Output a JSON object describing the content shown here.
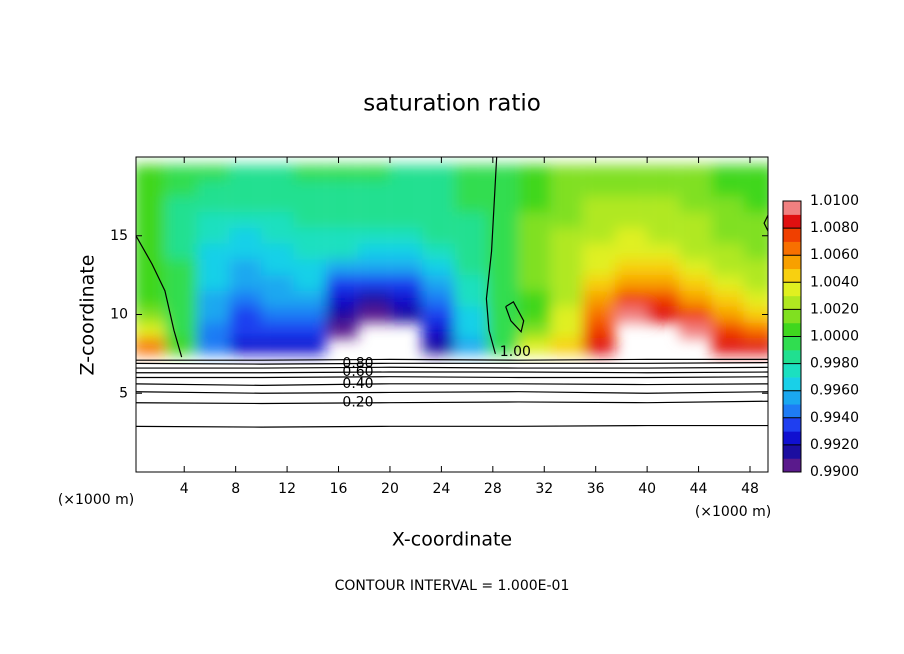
{
  "chart_data": {
    "type": "contour",
    "title": "saturation ratio",
    "xlabel": "X-coordinate",
    "ylabel": "Z-coordinate",
    "x_unit": "(×1000 m)",
    "footer": "CONTOUR INTERVAL = 1.000E-01",
    "xlim": [
      0.25,
      49.4
    ],
    "ylim": [
      0,
      20
    ],
    "xticks": [
      4,
      8,
      12,
      16,
      20,
      24,
      28,
      32,
      36,
      40,
      44,
      48
    ],
    "yticks": [
      5,
      10,
      15
    ],
    "colorbar": {
      "lim": [
        0.99,
        1.01
      ],
      "step": 0.001,
      "colors": [
        "#5a1a8c",
        "#1c0ea0",
        "#1010d0",
        "#1f3ff0",
        "#1e7cf5",
        "#1aa8f0",
        "#19d0e8",
        "#1be0c0",
        "#20e090",
        "#30dd50",
        "#3fd71e",
        "#80e020",
        "#b0e820",
        "#e0f020",
        "#f8d010",
        "#f8a000",
        "#f87000",
        "#f04000",
        "#e01010",
        "#f08080"
      ],
      "ticks": [
        {
          "value": 0.99,
          "label": "0.9900"
        },
        {
          "value": 0.992,
          "label": "0.9920"
        },
        {
          "value": 0.994,
          "label": "0.9940"
        },
        {
          "value": 0.996,
          "label": "0.9960"
        },
        {
          "value": 0.998,
          "label": "0.9980"
        },
        {
          "value": 1.0,
          "label": "1.0000"
        },
        {
          "value": 1.002,
          "label": "1.0020"
        },
        {
          "value": 1.004,
          "label": "1.0040"
        },
        {
          "value": 1.006,
          "label": "1.0060"
        },
        {
          "value": 1.008,
          "label": "1.0080"
        },
        {
          "value": 1.01,
          "label": "1.0100"
        }
      ]
    },
    "field": {
      "x": [
        1.25,
        3.75,
        6.25,
        8.75,
        11.25,
        13.75,
        16.25,
        18.75,
        21.25,
        23.75,
        26.25,
        28.75,
        31.25,
        33.75,
        36.25,
        38.75,
        41.25,
        43.75,
        46.25,
        48.75
      ],
      "z": [
        19,
        18,
        17,
        16,
        15,
        14,
        13,
        12,
        11,
        10,
        9,
        8
      ],
      "values": [
        [
          1.0003,
          0.9992,
          0.999,
          0.9988,
          0.9988,
          0.999,
          0.999,
          0.999,
          0.9988,
          0.9988,
          0.999,
          0.9996,
          1.0006,
          1.001,
          1.0012,
          1.0014,
          1.0012,
          1.001,
          1.0006,
          1.0004
        ],
        [
          1.0003,
          0.9991,
          0.9988,
          0.9985,
          0.9985,
          0.9988,
          0.9988,
          0.9988,
          0.9986,
          0.9987,
          0.999,
          0.9996,
          1.0008,
          1.0012,
          1.0016,
          1.0018,
          1.0016,
          1.0012,
          1.0008,
          1.0006
        ],
        [
          1.0004,
          0.9989,
          0.9984,
          0.998,
          0.9982,
          0.9986,
          0.9986,
          0.9986,
          0.9984,
          0.9986,
          0.999,
          0.9997,
          1.0009,
          1.0015,
          1.002,
          1.0022,
          1.002,
          1.0016,
          1.001,
          1.0008
        ],
        [
          1.0004,
          0.9988,
          0.9978,
          0.9972,
          0.9976,
          0.9982,
          0.9984,
          0.9982,
          0.998,
          0.9984,
          0.9989,
          0.9997,
          1.001,
          1.0018,
          1.0024,
          1.0026,
          1.0024,
          1.002,
          1.0014,
          1.001
        ],
        [
          1.0002,
          0.9986,
          0.9972,
          0.9966,
          0.997,
          0.9978,
          0.9978,
          0.9976,
          0.9974,
          0.998,
          0.9988,
          0.9997,
          1.0011,
          1.002,
          1.0028,
          1.003,
          1.0028,
          1.0024,
          1.0018,
          1.0014
        ],
        [
          1.0004,
          0.9988,
          0.9968,
          0.996,
          0.9966,
          0.9974,
          0.997,
          0.9966,
          0.9966,
          0.9974,
          0.9986,
          0.9998,
          1.0012,
          1.0022,
          1.0032,
          1.0036,
          1.0034,
          1.0028,
          1.0022,
          1.0018
        ],
        [
          1.0005,
          0.999,
          0.9964,
          0.9956,
          0.9962,
          0.9968,
          0.9954,
          0.995,
          0.9952,
          0.9964,
          0.9982,
          0.9998,
          1.0012,
          1.0024,
          1.0038,
          1.0044,
          1.0042,
          1.0034,
          1.0026,
          1.0022
        ],
        [
          1.0006,
          0.9992,
          0.9962,
          0.995,
          0.9958,
          0.996,
          0.9936,
          0.9932,
          0.9936,
          0.9954,
          0.9978,
          0.9997,
          1.001,
          1.0026,
          1.0046,
          1.0056,
          1.0054,
          1.0044,
          1.0032,
          1.0028
        ],
        [
          1.0008,
          0.9994,
          0.9958,
          0.9946,
          0.995,
          0.995,
          0.9922,
          0.9918,
          0.9922,
          0.9944,
          0.9972,
          0.9994,
          1.0008,
          1.0028,
          1.0056,
          1.0072,
          1.007,
          1.0058,
          1.0042,
          1.0036
        ],
        [
          1.001,
          0.9996,
          0.9952,
          0.9938,
          0.994,
          0.994,
          0.9912,
          0.9908,
          0.991,
          0.9934,
          0.9966,
          0.999,
          1.0006,
          1.003,
          1.0066,
          1.009,
          1.0088,
          1.0074,
          1.0056,
          1.0046
        ],
        [
          1.003,
          0.9998,
          0.9946,
          0.9932,
          0.9932,
          0.9932,
          0.99,
          0.9896,
          0.9898,
          0.9924,
          0.996,
          0.9994,
          1.001,
          1.0036,
          1.0074,
          1.0104,
          1.0106,
          1.009,
          1.007,
          1.006
        ],
        [
          1.0064,
          1.0,
          0.994,
          0.9926,
          0.9926,
          0.9928,
          0.989,
          0.9886,
          0.9888,
          0.9918,
          0.9956,
          0.9998,
          1.003,
          1.0046,
          1.008,
          1.0112,
          1.0114,
          1.01,
          1.0084,
          1.008
        ]
      ]
    },
    "contours": [
      {
        "level": 0.1,
        "x": [
          0,
          10,
          20,
          30,
          40,
          50
        ],
        "z": [
          2.9,
          2.85,
          2.9,
          2.9,
          2.95,
          2.95
        ]
      },
      {
        "level": 0.2,
        "label": "0.20",
        "x": [
          0,
          10,
          20,
          30,
          40,
          50
        ],
        "z": [
          4.4,
          4.35,
          4.4,
          4.45,
          4.4,
          4.5
        ]
      },
      {
        "level": 0.3,
        "x": [
          0,
          10,
          20,
          30,
          40,
          50
        ],
        "z": [
          5.1,
          5.0,
          5.05,
          5.1,
          5.0,
          5.1
        ]
      },
      {
        "level": 0.4,
        "label": "0.40",
        "x": [
          0,
          10,
          20,
          30,
          40,
          50
        ],
        "z": [
          5.6,
          5.5,
          5.6,
          5.6,
          5.55,
          5.6
        ]
      },
      {
        "level": 0.5,
        "x": [
          0,
          10,
          20,
          30,
          40,
          50
        ],
        "z": [
          6.0,
          6.0,
          6.05,
          6.0,
          6.0,
          6.05
        ]
      },
      {
        "level": 0.6,
        "label": "0.60",
        "x": [
          0,
          10,
          20,
          30,
          40,
          50
        ],
        "z": [
          6.3,
          6.3,
          6.35,
          6.35,
          6.3,
          6.35
        ]
      },
      {
        "level": 0.7,
        "x": [
          0,
          10,
          20,
          30,
          40,
          50
        ],
        "z": [
          6.6,
          6.6,
          6.65,
          6.6,
          6.6,
          6.65
        ]
      },
      {
        "level": 0.8,
        "label": "0.80",
        "x": [
          0,
          10,
          20,
          30,
          40,
          50
        ],
        "z": [
          6.9,
          6.85,
          6.9,
          6.9,
          6.9,
          6.95
        ]
      },
      {
        "level": 0.9,
        "x": [
          0,
          10,
          20,
          30,
          40,
          50
        ],
        "z": [
          7.1,
          7.1,
          7.15,
          7.1,
          7.15,
          7.15
        ]
      },
      {
        "level": 1.0,
        "x": [
          0.25,
          1.5,
          2.5,
          3.2,
          3.8
        ],
        "z": [
          15,
          13.2,
          11.5,
          9,
          7.3
        ]
      },
      {
        "level": 1.0,
        "label": "1.00",
        "x": [
          28.3,
          28.1,
          27.9,
          27.5,
          27.7,
          28.2
        ],
        "z": [
          20,
          17,
          14,
          11,
          9,
          7.5
        ]
      },
      {
        "level": 1.0,
        "x": [
          29,
          29.6,
          30.4,
          30.2,
          29.4,
          29
        ],
        "z": [
          10.5,
          10.8,
          9.6,
          8.9,
          9.6,
          10.5
        ]
      },
      {
        "level": 1.0,
        "x": [
          49.4,
          49.1,
          49.4
        ],
        "z": [
          16.3,
          15.8,
          15.3
        ]
      }
    ]
  }
}
